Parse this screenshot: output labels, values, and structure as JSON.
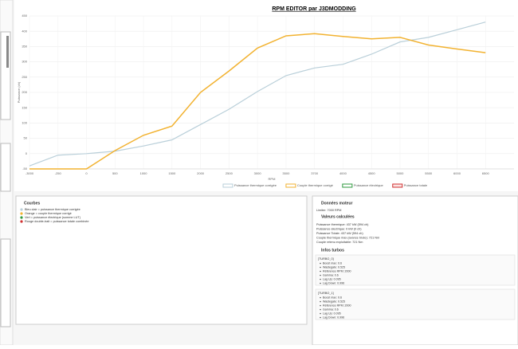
{
  "chart_data": {
    "type": "line",
    "title": "RPM EDITOR par J3DMODDING",
    "x_label": "RPM",
    "y_label": "Puissance (ch)",
    "categories": [
      "-3000",
      "-250",
      "0",
      "500",
      "1000",
      "1500",
      "2000",
      "2500",
      "3000",
      "3500",
      "3700",
      "4000",
      "4500",
      "5000",
      "5500",
      "6000",
      "6500"
    ],
    "ylim": [
      -50,
      450
    ],
    "yticks": [
      -50,
      0,
      50,
      100,
      150,
      200,
      250,
      300,
      350,
      400,
      450
    ],
    "grid": true,
    "legend": "bottom",
    "series": [
      {
        "name": "Puissance thermique corrigée",
        "color": "#b9cfd9",
        "values": [
          -40,
          -5,
          0,
          8,
          25,
          45,
          95,
          145,
          203,
          255,
          280,
          292,
          325,
          365,
          380,
          405,
          430
        ]
      },
      {
        "name": "Couple thermique corrigé",
        "color": "#f2b230",
        "values": [
          -50,
          -50,
          -50,
          10,
          60,
          90,
          200,
          270,
          345,
          385,
          392,
          383,
          375,
          380,
          355,
          342,
          330
        ]
      },
      {
        "name": "Puissance électrique",
        "color": "#2e9a3e"
      },
      {
        "name": "Puissance totale",
        "color": "#d03030"
      }
    ]
  },
  "curves_panel": {
    "title": "Courbes",
    "items": [
      "Bleu clair = puissance thermique corrigée",
      "Orange = couple thermique corrigé",
      "Vert = puissance électrique (somme LUT)",
      "Rouge double-trait = puissance totale combinée"
    ]
  },
  "engine_panel": {
    "title": "Données moteur",
    "limiter": "Limiter: 7000 RPM",
    "computed_title": "Valeurs calculées",
    "computed": [
      "Puissance thermique: 437 kW (594 ch)",
      "Puissance électrique: 0 kW (0 ch)",
      "Puissance Totale: 437 kW (594 ch)",
      "Couple thermique max (avance brute): 721 Nm",
      "Couple retenu exploitable: 721 Nm"
    ],
    "turbo_title": "Infos turbos",
    "turbos": [
      {
        "name": "[TURBO_0]",
        "lines": [
          "Boost max: 0.6",
          "Wastegate: 0.525",
          "Référence RPM: 2000",
          "Gamma: 0.6",
          "Lag Up: 0.095",
          "Lag Down: 0.996"
        ]
      },
      {
        "name": "[TURBO_1]",
        "lines": [
          "Boost max: 0.6",
          "Wastegate: 0.525",
          "Référence RPM: 2000",
          "Gamma: 0.6",
          "Lag Up: 0.095",
          "Lag Down: 0.996"
        ]
      }
    ]
  }
}
